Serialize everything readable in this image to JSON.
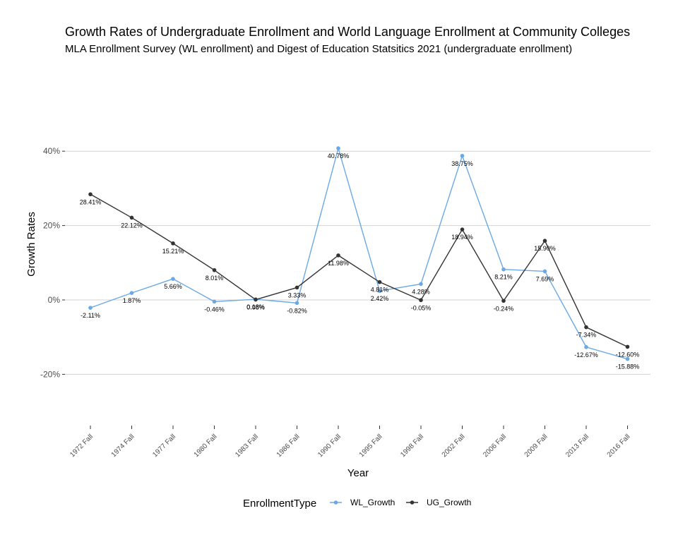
{
  "chart_data": {
    "type": "line",
    "title": "Growth Rates of Undergraduate Enrollment and World Language Enrollment at Community Colleges",
    "subtitle": "MLA Enrollment Survey (WL enrollment) and Digest of Education Statsitics 2021 (undergraduate enrollment)",
    "xlabel": "Year",
    "ylabel": "Growth Rates",
    "categories": [
      "1972 Fall",
      "1974 Fall",
      "1977 Fall",
      "1980 Fall",
      "1983 Fall",
      "1986 Fall",
      "1990 Fall",
      "1995 Fall",
      "1998 Fall",
      "2002 Fall",
      "2006 Fall",
      "2009 Fall",
      "2013 Fall",
      "2016 Fall"
    ],
    "ylim": [
      -33,
      50
    ],
    "yticks": [
      -20,
      0,
      20,
      40
    ],
    "ytick_labels": [
      "-20%",
      "0%",
      "20%",
      "40%"
    ],
    "grid": true,
    "legend": {
      "title": "EnrollmentType",
      "position": "bottom"
    },
    "series": [
      {
        "name": "WL_Growth",
        "color": "#6aa9e6",
        "values": [
          -2.11,
          1.87,
          5.66,
          -0.46,
          0.18,
          -0.82,
          40.78,
          2.42,
          4.28,
          38.75,
          8.21,
          7.69,
          -12.67,
          -15.88
        ],
        "labels": [
          "-2.11%",
          "1.87%",
          "5.66%",
          "-0.46%",
          "0.18%",
          "-0.82%",
          "40.78%",
          "2.42%",
          "4.28%",
          "38.75%",
          "8.21%",
          "7.69%",
          "-12.67%",
          "-15.88%"
        ]
      },
      {
        "name": "UG_Growth",
        "color": "#333333",
        "values": [
          28.41,
          22.12,
          15.21,
          8.01,
          0.08,
          3.33,
          11.98,
          4.81,
          -0.05,
          18.94,
          -0.24,
          15.9,
          -7.34,
          -12.6
        ],
        "labels": [
          "28.41%",
          "22.12%",
          "15.21%",
          "8.01%",
          "0.08%",
          "3.33%",
          "11.98%",
          "4.81%",
          "-0.05%",
          "18.94%",
          "-0.24%",
          "15.90%",
          "-7.34%",
          "-12.60%"
        ]
      }
    ]
  }
}
